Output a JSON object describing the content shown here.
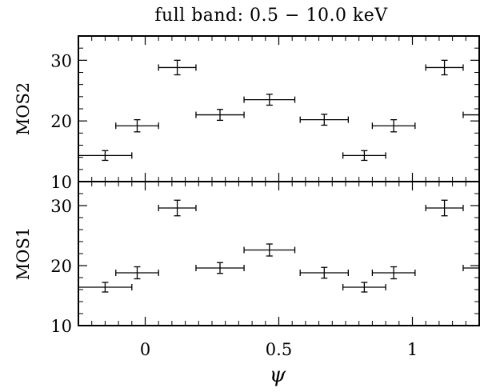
{
  "chart_data": {
    "type": "scatter",
    "title": "full band: 0.5 − 10.0 keV",
    "xlabel": "ψ",
    "xlim": [
      -0.25,
      1.25
    ],
    "x_ticks": [
      0,
      0.5,
      1
    ],
    "x_tick_labels": [
      "0",
      "0.5",
      "1"
    ],
    "grid": false,
    "panels": [
      {
        "ylabel": "MOS2",
        "ylim": [
          10,
          34
        ],
        "y_ticks": [
          10,
          20,
          30
        ],
        "y_tick_labels": [
          "10",
          "20",
          "30"
        ],
        "points": [
          {
            "x": -0.15,
            "xerr": 0.1,
            "y": 14.3,
            "yerr": 0.8
          },
          {
            "x": -0.03,
            "xerr": 0.08,
            "y": 19.2,
            "yerr": 1.0
          },
          {
            "x": 0.12,
            "xerr": 0.07,
            "y": 28.8,
            "yerr": 1.2
          },
          {
            "x": 0.28,
            "xerr": 0.09,
            "y": 21.0,
            "yerr": 0.9
          },
          {
            "x": 0.465,
            "xerr": 0.095,
            "y": 23.5,
            "yerr": 0.9
          },
          {
            "x": 0.67,
            "xerr": 0.09,
            "y": 20.2,
            "yerr": 0.9
          },
          {
            "x": 0.82,
            "xerr": 0.08,
            "y": 14.3,
            "yerr": 0.8
          },
          {
            "x": 0.93,
            "xerr": 0.08,
            "y": 19.2,
            "yerr": 1.0
          },
          {
            "x": 1.12,
            "xerr": 0.07,
            "y": 28.8,
            "yerr": 1.2
          },
          {
            "x": 1.28,
            "xerr": 0.09,
            "y": 21.0,
            "yerr": 0.9
          }
        ]
      },
      {
        "ylabel": "MOS1",
        "ylim": [
          10,
          34
        ],
        "y_ticks": [
          10,
          20,
          30
        ],
        "y_tick_labels": [
          "10",
          "20",
          "30"
        ],
        "points": [
          {
            "x": -0.15,
            "xerr": 0.1,
            "y": 16.4,
            "yerr": 0.8
          },
          {
            "x": -0.03,
            "xerr": 0.08,
            "y": 18.8,
            "yerr": 1.0
          },
          {
            "x": 0.12,
            "xerr": 0.07,
            "y": 29.6,
            "yerr": 1.3
          },
          {
            "x": 0.28,
            "xerr": 0.09,
            "y": 19.6,
            "yerr": 0.9
          },
          {
            "x": 0.465,
            "xerr": 0.095,
            "y": 22.6,
            "yerr": 1.0
          },
          {
            "x": 0.67,
            "xerr": 0.09,
            "y": 18.8,
            "yerr": 0.9
          },
          {
            "x": 0.82,
            "xerr": 0.08,
            "y": 16.4,
            "yerr": 0.8
          },
          {
            "x": 0.93,
            "xerr": 0.08,
            "y": 18.8,
            "yerr": 1.0
          },
          {
            "x": 1.12,
            "xerr": 0.07,
            "y": 29.6,
            "yerr": 1.3
          },
          {
            "x": 1.28,
            "xerr": 0.09,
            "y": 19.6,
            "yerr": 0.9
          }
        ]
      }
    ]
  }
}
